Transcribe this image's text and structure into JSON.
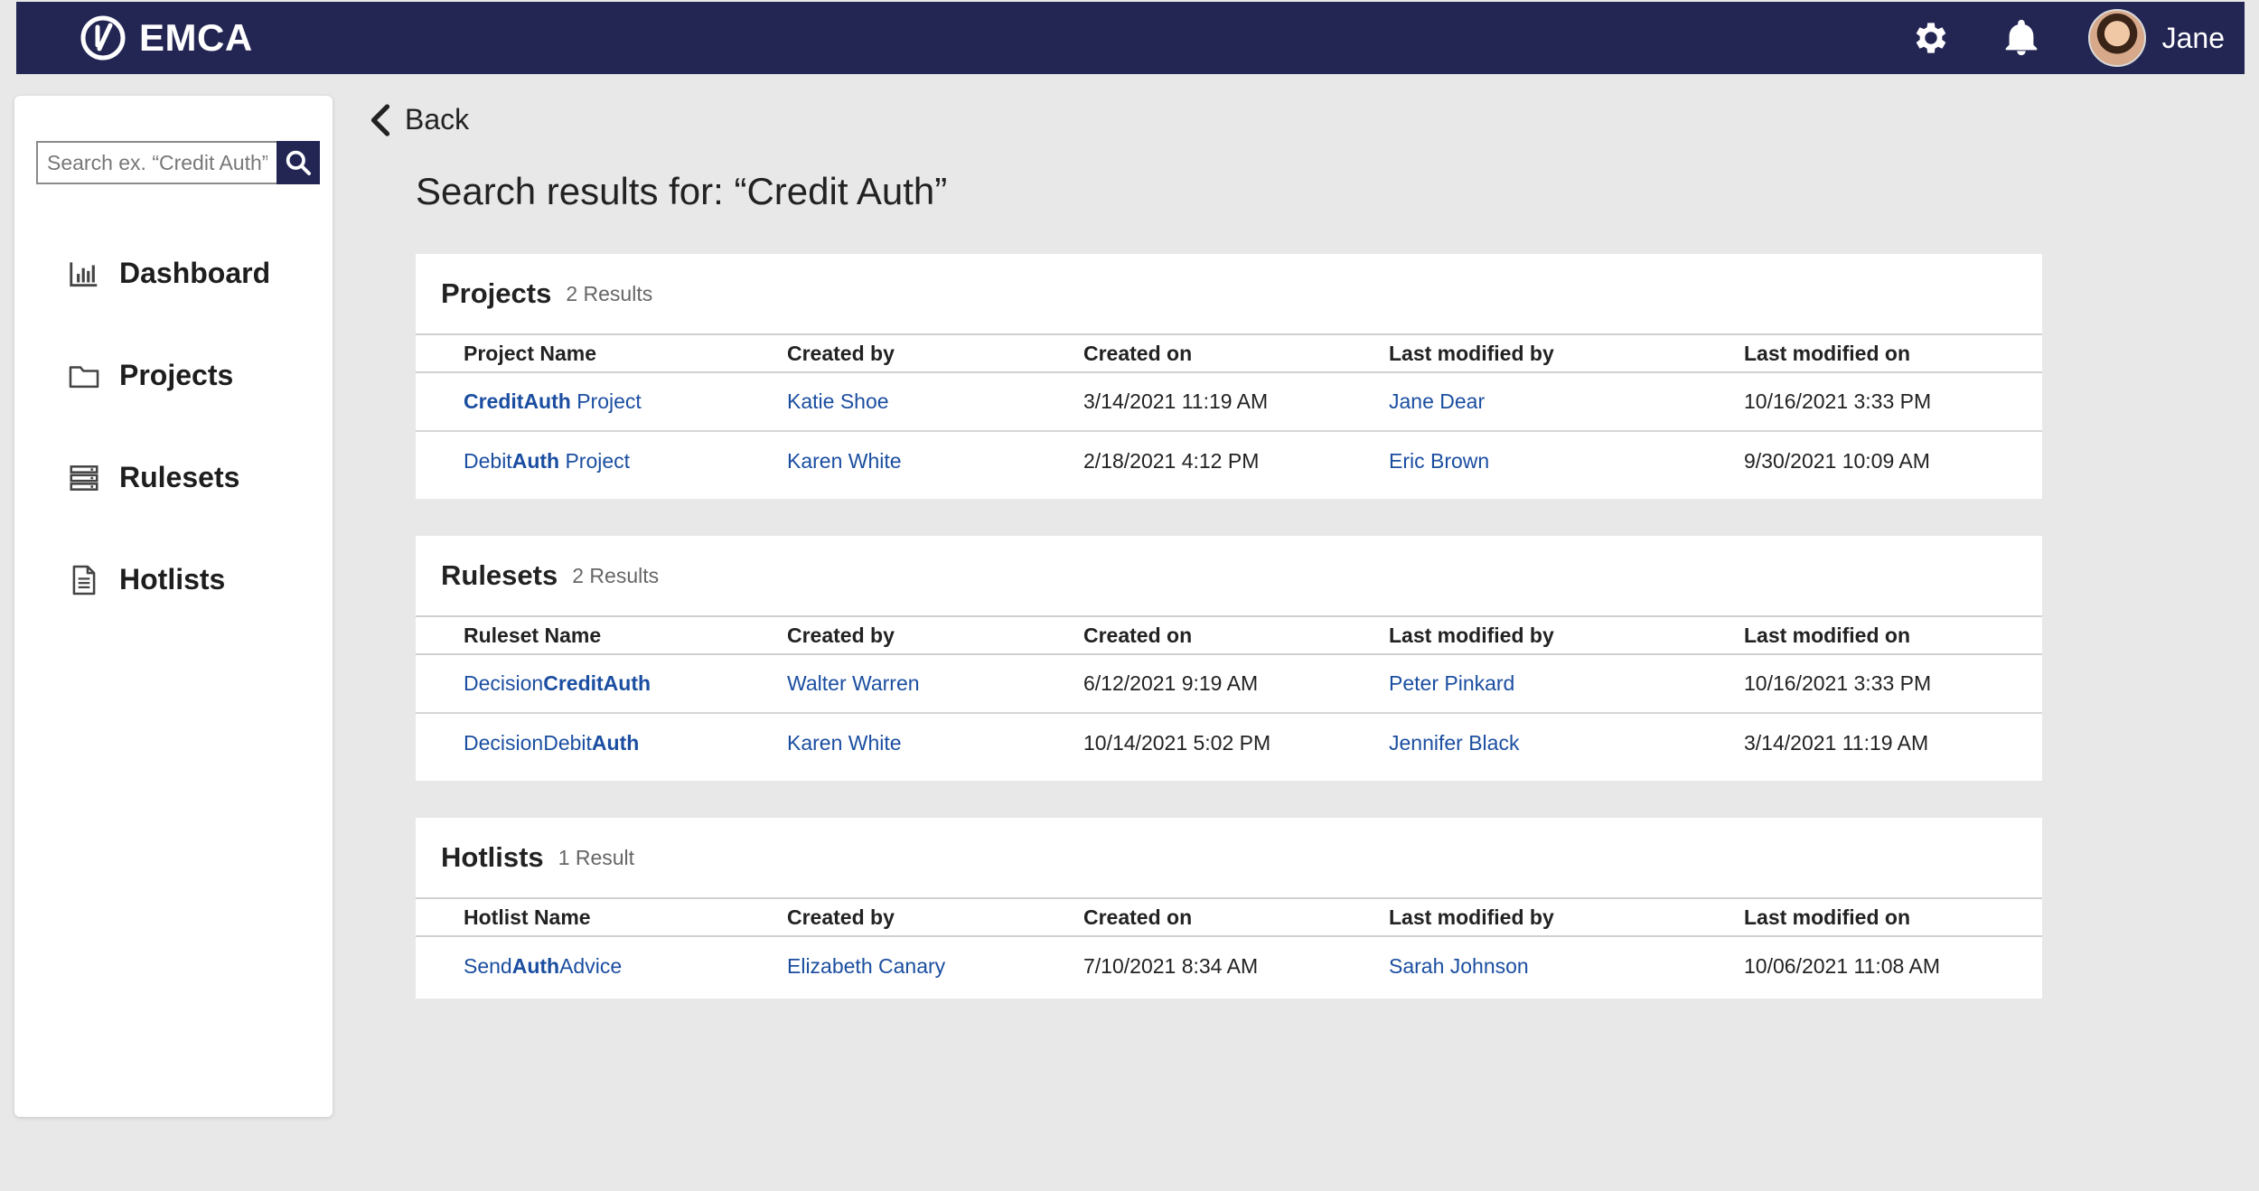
{
  "header": {
    "brand": "EMCA",
    "user_name": "Jane",
    "icons": [
      "gear-icon",
      "bell-icon"
    ]
  },
  "sidebar": {
    "search_placeholder": "Search ex. “Credit Auth”",
    "items": [
      {
        "label": "Dashboard",
        "icon": "bar-chart-icon"
      },
      {
        "label": "Projects",
        "icon": "folder-icon"
      },
      {
        "label": "Rulesets",
        "icon": "stack-icon"
      },
      {
        "label": "Hotlists",
        "icon": "document-icon"
      }
    ]
  },
  "main": {
    "back_label": "Back",
    "title": "Search results for: “Credit Auth”"
  },
  "colors": {
    "header_bg": "#232653",
    "link": "#1b4ea0",
    "page_bg": "#e8e8e8"
  },
  "sections": {
    "projects": {
      "title": "Projects",
      "count": "2 Results",
      "columns": [
        "Project Name",
        "Created by",
        "Created on",
        "Last modified by",
        "Last modified on"
      ],
      "rows": [
        {
          "name_pre": "",
          "name_bold": "CreditAuth",
          "name_post": " Project",
          "created_by": "Katie Shoe",
          "created_on": "3/14/2021 11:19 AM",
          "modified_by": "Jane Dear",
          "modified_on": "10/16/2021 3:33 PM"
        },
        {
          "name_pre": "Debit",
          "name_bold": "Auth",
          "name_post": " Project",
          "created_by": "Karen White",
          "created_on": "2/18/2021 4:12 PM",
          "modified_by": "Eric Brown",
          "modified_on": "9/30/2021 10:09 AM"
        }
      ]
    },
    "rulesets": {
      "title": "Rulesets",
      "count": "2 Results",
      "columns": [
        "Ruleset Name",
        "Created by",
        "Created on",
        "Last modified by",
        "Last modified on"
      ],
      "rows": [
        {
          "name_pre": "Decision",
          "name_bold": "CreditAuth",
          "name_post": "",
          "created_by": "Walter Warren",
          "created_on": "6/12/2021 9:19 AM",
          "modified_by": "Peter Pinkard",
          "modified_on": "10/16/2021 3:33 PM"
        },
        {
          "name_pre": "DecisionDebit",
          "name_bold": "Auth",
          "name_post": "",
          "created_by": "Karen White",
          "created_on": "10/14/2021 5:02 PM",
          "modified_by": "Jennifer Black",
          "modified_on": "3/14/2021 11:19 AM"
        }
      ]
    },
    "hotlists": {
      "title": "Hotlists",
      "count": "1 Result",
      "columns": [
        "Hotlist Name",
        "Created by",
        "Created on",
        "Last modified by",
        "Last modified on"
      ],
      "rows": [
        {
          "name_pre": "Send",
          "name_bold": "Auth",
          "name_post": "Advice",
          "created_by": "Elizabeth Canary",
          "created_on": "7/10/2021 8:34 AM",
          "modified_by": "Sarah Johnson",
          "modified_on": "10/06/2021 11:08 AM"
        }
      ]
    }
  }
}
